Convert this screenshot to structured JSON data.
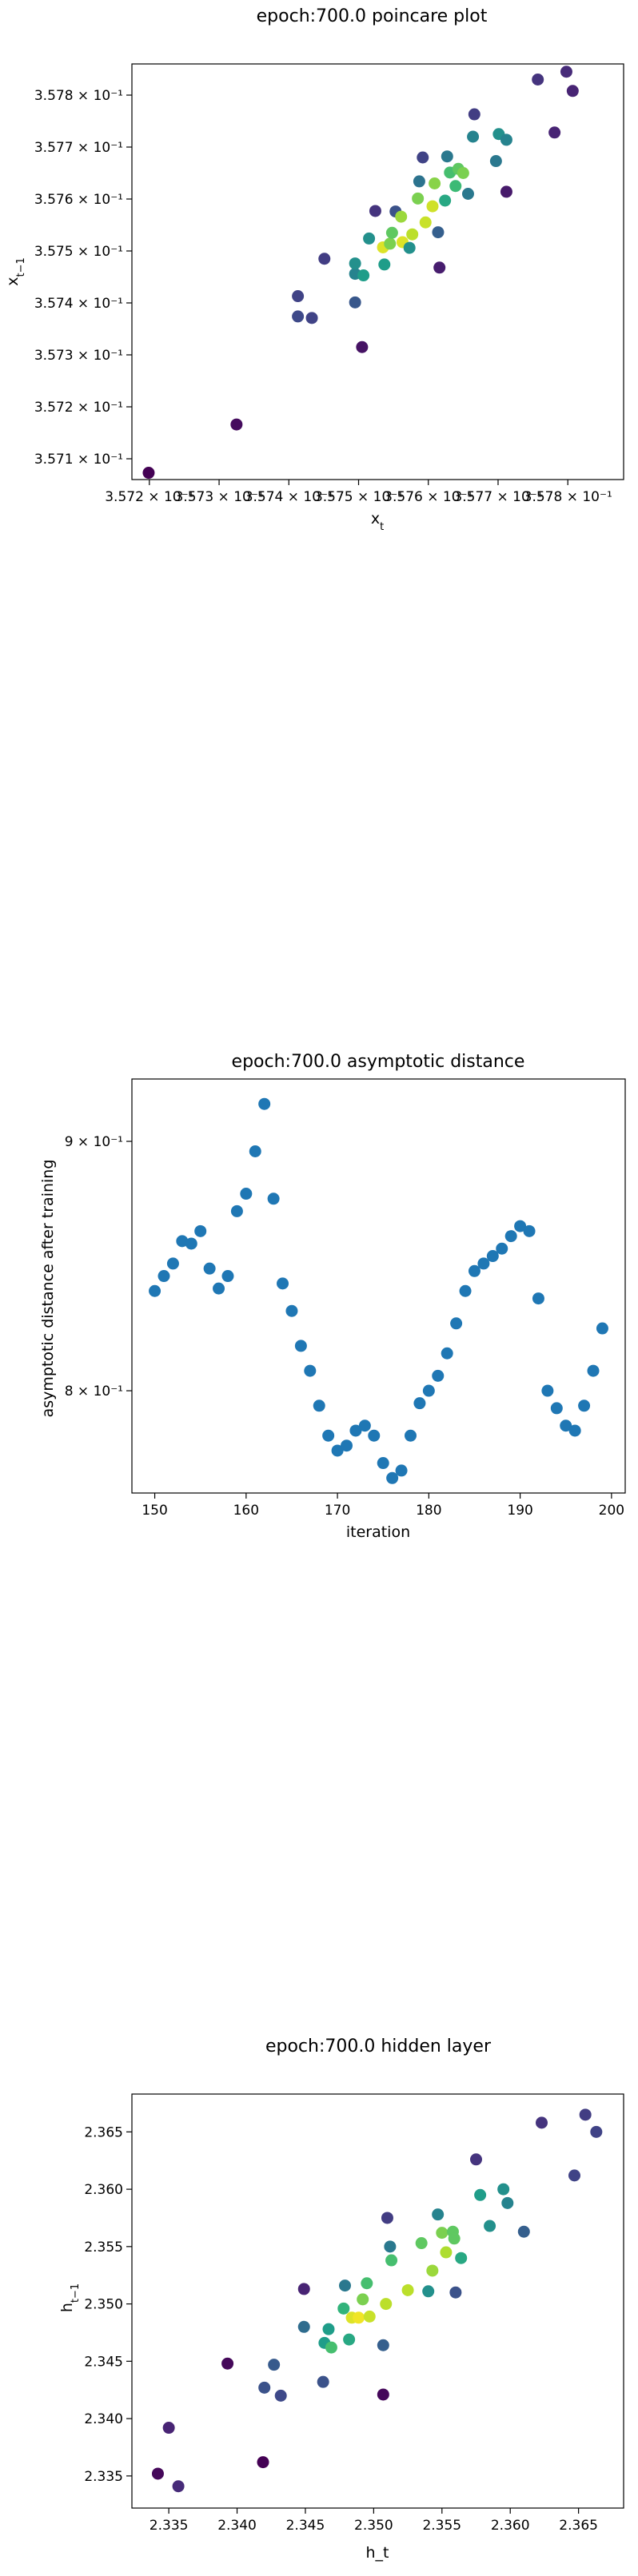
{
  "chart_data": [
    {
      "type": "scatter",
      "title": "epoch:700.0 poincare plot",
      "xlabel": "x_t",
      "ylabel": "x_{t-1}",
      "colormap": "viridis",
      "grid": false,
      "xlim": [
        0.357175,
        0.35788
      ],
      "ylim": [
        0.35706,
        0.35786
      ],
      "xticks": [
        0.3572,
        0.3573,
        0.3574,
        0.3575,
        0.3576,
        0.3577,
        0.3578
      ],
      "xtick_labels": [
        "3.572 × 10⁻¹",
        "3.573 × 10⁻¹",
        "3.574 × 10⁻¹",
        "3.575 × 10⁻¹",
        "3.576 × 10⁻¹",
        "3.577 × 10⁻¹",
        "3.578 × 10⁻¹"
      ],
      "yticks": [
        0.3571,
        0.3572,
        0.3573,
        0.3574,
        0.3575,
        0.3576,
        0.3577,
        0.3578
      ],
      "ytick_labels": [
        "3.571 × 10⁻¹",
        "3.572 × 10⁻¹",
        "3.573 × 10⁻¹",
        "3.574 × 10⁻¹",
        "3.575 × 10⁻¹",
        "3.576 × 10⁻¹",
        "3.577 × 10⁻¹",
        "3.578 × 10⁻¹"
      ],
      "points": [
        {
          "x": 0.357199,
          "y": 0.357073,
          "c": 0.0
        },
        {
          "x": 0.357325,
          "y": 0.357166,
          "c": 0.03
        },
        {
          "x": 0.357413,
          "y": 0.357413,
          "c": 0.2
        },
        {
          "x": 0.357413,
          "y": 0.357374,
          "c": 0.22
        },
        {
          "x": 0.357433,
          "y": 0.357371,
          "c": 0.2
        },
        {
          "x": 0.357451,
          "y": 0.357485,
          "c": 0.18
        },
        {
          "x": 0.357495,
          "y": 0.357401,
          "c": 0.27
        },
        {
          "x": 0.357505,
          "y": 0.357315,
          "c": 0.05
        },
        {
          "x": 0.357495,
          "y": 0.357456,
          "c": 0.45
        },
        {
          "x": 0.357495,
          "y": 0.357476,
          "c": 0.5
        },
        {
          "x": 0.357507,
          "y": 0.357453,
          "c": 0.55
        },
        {
          "x": 0.357515,
          "y": 0.357524,
          "c": 0.5
        },
        {
          "x": 0.357524,
          "y": 0.357577,
          "c": 0.15
        },
        {
          "x": 0.357535,
          "y": 0.357507,
          "c": 0.95
        },
        {
          "x": 0.357537,
          "y": 0.357474,
          "c": 0.55
        },
        {
          "x": 0.357545,
          "y": 0.357514,
          "c": 0.8
        },
        {
          "x": 0.357548,
          "y": 0.357535,
          "c": 0.75
        },
        {
          "x": 0.357553,
          "y": 0.357576,
          "c": 0.25
        },
        {
          "x": 0.357561,
          "y": 0.357566,
          "c": 0.85
        },
        {
          "x": 0.357563,
          "y": 0.357517,
          "c": 0.95
        },
        {
          "x": 0.357573,
          "y": 0.357506,
          "c": 0.5
        },
        {
          "x": 0.357577,
          "y": 0.357532,
          "c": 0.9
        },
        {
          "x": 0.357585,
          "y": 0.357601,
          "c": 0.8
        },
        {
          "x": 0.357587,
          "y": 0.357634,
          "c": 0.38
        },
        {
          "x": 0.357592,
          "y": 0.35768,
          "c": 0.2
        },
        {
          "x": 0.357596,
          "y": 0.357555,
          "c": 0.92
        },
        {
          "x": 0.357606,
          "y": 0.357586,
          "c": 0.93
        },
        {
          "x": 0.357609,
          "y": 0.35763,
          "c": 0.82
        },
        {
          "x": 0.357614,
          "y": 0.357536,
          "c": 0.3
        },
        {
          "x": 0.357616,
          "y": 0.357468,
          "c": 0.08
        },
        {
          "x": 0.357624,
          "y": 0.357597,
          "c": 0.6
        },
        {
          "x": 0.357627,
          "y": 0.357682,
          "c": 0.4
        },
        {
          "x": 0.357631,
          "y": 0.357651,
          "c": 0.7
        },
        {
          "x": 0.357639,
          "y": 0.357625,
          "c": 0.68
        },
        {
          "x": 0.357643,
          "y": 0.357658,
          "c": 0.75
        },
        {
          "x": 0.35765,
          "y": 0.35765,
          "c": 0.8
        },
        {
          "x": 0.357657,
          "y": 0.35761,
          "c": 0.4
        },
        {
          "x": 0.357664,
          "y": 0.35772,
          "c": 0.45
        },
        {
          "x": 0.357666,
          "y": 0.357763,
          "c": 0.18
        },
        {
          "x": 0.357697,
          "y": 0.357673,
          "c": 0.4
        },
        {
          "x": 0.357701,
          "y": 0.357725,
          "c": 0.5
        },
        {
          "x": 0.357712,
          "y": 0.357714,
          "c": 0.45
        },
        {
          "x": 0.357712,
          "y": 0.357614,
          "c": 0.07
        },
        {
          "x": 0.357757,
          "y": 0.35783,
          "c": 0.15
        },
        {
          "x": 0.357781,
          "y": 0.357728,
          "c": 0.1
        },
        {
          "x": 0.357798,
          "y": 0.357845,
          "c": 0.12
        },
        {
          "x": 0.357807,
          "y": 0.357808,
          "c": 0.1
        }
      ]
    },
    {
      "type": "scatter",
      "title": "epoch:700.0 asymptotic distance",
      "xlabel": "iteration",
      "ylabel": "asymptotic distance after training",
      "color": "#1f77b4",
      "grid": false,
      "xlim": [
        147.5,
        201.5
      ],
      "ylim": [
        0.759,
        0.925
      ],
      "xticks": [
        150,
        160,
        170,
        180,
        190,
        200
      ],
      "yticks": [
        0.8,
        0.9
      ],
      "ytick_labels": [
        "8 × 10⁻¹",
        "9 × 10⁻¹"
      ],
      "x": [
        150,
        151,
        152,
        153,
        154,
        155,
        156,
        157,
        158,
        159,
        160,
        161,
        162,
        163,
        164,
        165,
        166,
        167,
        168,
        169,
        170,
        171,
        172,
        173,
        174,
        175,
        176,
        177,
        178,
        179,
        180,
        181,
        182,
        183,
        184,
        185,
        186,
        187,
        188,
        189,
        190,
        191,
        192,
        193,
        194,
        195,
        196,
        197,
        198,
        199
      ],
      "y": [
        0.84,
        0.846,
        0.851,
        0.86,
        0.859,
        0.864,
        0.849,
        0.841,
        0.846,
        0.872,
        0.879,
        0.896,
        0.915,
        0.877,
        0.843,
        0.832,
        0.818,
        0.808,
        0.794,
        0.782,
        0.776,
        0.778,
        0.784,
        0.786,
        0.782,
        0.771,
        0.765,
        0.768,
        0.782,
        0.795,
        0.8,
        0.806,
        0.815,
        0.827,
        0.84,
        0.848,
        0.851,
        0.854,
        0.857,
        0.862,
        0.866,
        0.864,
        0.837,
        0.8,
        0.793,
        0.786,
        0.784,
        0.794,
        0.808,
        0.825
      ]
    },
    {
      "type": "scatter",
      "title": "epoch:700.0 hidden layer",
      "xlabel": "h_t",
      "ylabel": "h_{t-1}",
      "colormap": "viridis",
      "grid": false,
      "xlim": [
        2.3323,
        2.3683
      ],
      "ylim": [
        2.3322,
        2.3683
      ],
      "xticks": [
        2.335,
        2.34,
        2.345,
        2.35,
        2.355,
        2.36,
        2.365
      ],
      "xtick_labels": [
        "2.335",
        "2.340",
        "2.345",
        "2.350",
        "2.355",
        "2.360",
        "2.365"
      ],
      "yticks": [
        2.335,
        2.34,
        2.345,
        2.35,
        2.355,
        2.36,
        2.365
      ],
      "ytick_labels": [
        "2.335",
        "2.340",
        "2.345",
        "2.350",
        "2.355",
        "2.360",
        "2.365"
      ],
      "points": [
        {
          "x": 2.3342,
          "y": 2.3352,
          "c": 0.02
        },
        {
          "x": 2.335,
          "y": 2.3392,
          "c": 0.1
        },
        {
          "x": 2.3357,
          "y": 2.3341,
          "c": 0.12
        },
        {
          "x": 2.3393,
          "y": 2.3448,
          "c": 0.02
        },
        {
          "x": 2.3419,
          "y": 2.3362,
          "c": 0.0
        },
        {
          "x": 2.342,
          "y": 2.3427,
          "c": 0.25
        },
        {
          "x": 2.3427,
          "y": 2.3447,
          "c": 0.28
        },
        {
          "x": 2.3432,
          "y": 2.342,
          "c": 0.22
        },
        {
          "x": 2.3449,
          "y": 2.3513,
          "c": 0.1
        },
        {
          "x": 2.3449,
          "y": 2.348,
          "c": 0.35
        },
        {
          "x": 2.3463,
          "y": 2.3432,
          "c": 0.25
        },
        {
          "x": 2.3464,
          "y": 2.3466,
          "c": 0.55
        },
        {
          "x": 2.3467,
          "y": 2.3478,
          "c": 0.55
        },
        {
          "x": 2.3469,
          "y": 2.3462,
          "c": 0.7
        },
        {
          "x": 2.3478,
          "y": 2.3496,
          "c": 0.65
        },
        {
          "x": 2.3479,
          "y": 2.3516,
          "c": 0.4
        },
        {
          "x": 2.3482,
          "y": 2.3469,
          "c": 0.6
        },
        {
          "x": 2.3484,
          "y": 2.3488,
          "c": 0.95
        },
        {
          "x": 2.3489,
          "y": 2.3488,
          "c": 0.98
        },
        {
          "x": 2.3492,
          "y": 2.3504,
          "c": 0.8
        },
        {
          "x": 2.3495,
          "y": 2.3518,
          "c": 0.7
        },
        {
          "x": 2.3497,
          "y": 2.3489,
          "c": 0.92
        },
        {
          "x": 2.3507,
          "y": 2.3464,
          "c": 0.3
        },
        {
          "x": 2.3507,
          "y": 2.3421,
          "c": 0.02
        },
        {
          "x": 2.3509,
          "y": 2.35,
          "c": 0.9
        },
        {
          "x": 2.351,
          "y": 2.3575,
          "c": 0.18
        },
        {
          "x": 2.3512,
          "y": 2.355,
          "c": 0.4
        },
        {
          "x": 2.3513,
          "y": 2.3538,
          "c": 0.7
        },
        {
          "x": 2.3525,
          "y": 2.3512,
          "c": 0.9
        },
        {
          "x": 2.3535,
          "y": 2.3553,
          "c": 0.75
        },
        {
          "x": 2.354,
          "y": 2.3511,
          "c": 0.5
        },
        {
          "x": 2.3543,
          "y": 2.3529,
          "c": 0.85
        },
        {
          "x": 2.3547,
          "y": 2.3578,
          "c": 0.45
        },
        {
          "x": 2.355,
          "y": 2.3562,
          "c": 0.8
        },
        {
          "x": 2.3553,
          "y": 2.3545,
          "c": 0.88
        },
        {
          "x": 2.3558,
          "y": 2.3563,
          "c": 0.75
        },
        {
          "x": 2.3559,
          "y": 2.3557,
          "c": 0.75
        },
        {
          "x": 2.356,
          "y": 2.351,
          "c": 0.25
        },
        {
          "x": 2.3564,
          "y": 2.354,
          "c": 0.6
        },
        {
          "x": 2.3575,
          "y": 2.3626,
          "c": 0.15
        },
        {
          "x": 2.3578,
          "y": 2.3595,
          "c": 0.55
        },
        {
          "x": 2.3585,
          "y": 2.3568,
          "c": 0.5
        },
        {
          "x": 2.3595,
          "y": 2.36,
          "c": 0.5
        },
        {
          "x": 2.3598,
          "y": 2.3588,
          "c": 0.45
        },
        {
          "x": 2.361,
          "y": 2.3563,
          "c": 0.3
        },
        {
          "x": 2.3623,
          "y": 2.3658,
          "c": 0.15
        },
        {
          "x": 2.3647,
          "y": 2.3612,
          "c": 0.2
        },
        {
          "x": 2.3655,
          "y": 2.3665,
          "c": 0.18
        },
        {
          "x": 2.3663,
          "y": 2.365,
          "c": 0.2
        }
      ]
    }
  ]
}
